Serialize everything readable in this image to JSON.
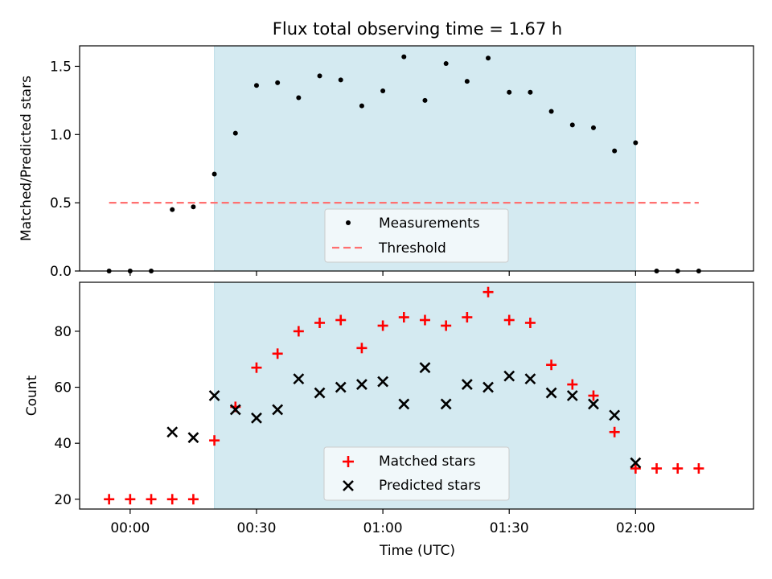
{
  "figure": {
    "title": "Flux total observing time = 1.67 h",
    "xlabel": "Time (UTC)"
  },
  "chart_data": [
    {
      "type": "scatter",
      "title": "Flux total observing time = 1.67 h",
      "xlabel": "",
      "ylabel": "Matched/Predicted stars",
      "xlim": [
        "23:48",
        "02:28"
      ],
      "ylim": [
        0,
        1.65
      ],
      "yticks": [
        0.0,
        0.5,
        1.0,
        1.5
      ],
      "ytick_labels": [
        "0.0",
        "0.5",
        "1.0",
        "1.5"
      ],
      "shaded_span": [
        "00:20",
        "02:00"
      ],
      "shade_color": "#d4eaf1",
      "legend_position": "lower center",
      "series": [
        {
          "name": "Measurements",
          "marker": "dot",
          "color": "#000000",
          "x": [
            "23:55",
            "00:00",
            "00:05",
            "00:10",
            "00:15",
            "00:20",
            "00:25",
            "00:30",
            "00:35",
            "00:40",
            "00:45",
            "00:50",
            "00:55",
            "01:00",
            "01:05",
            "01:10",
            "01:15",
            "01:20",
            "01:25",
            "01:30",
            "01:35",
            "01:40",
            "01:45",
            "01:50",
            "01:55",
            "02:00",
            "02:05",
            "02:10",
            "02:15"
          ],
          "y": [
            0.0,
            0.0,
            0.0,
            0.45,
            0.47,
            0.71,
            1.01,
            1.36,
            1.38,
            1.27,
            1.43,
            1.4,
            1.21,
            1.32,
            1.57,
            1.25,
            1.52,
            1.39,
            1.56,
            1.31,
            1.31,
            1.17,
            1.07,
            1.05,
            0.88,
            0.94,
            0.0,
            0.0,
            0.0
          ]
        },
        {
          "name": "Threshold",
          "marker": "dashed-line",
          "color": "#ff7070",
          "x": [
            "23:55",
            "02:15"
          ],
          "y": [
            0.5,
            0.5
          ]
        }
      ]
    },
    {
      "type": "scatter",
      "xlabel": "Time (UTC)",
      "ylabel": "Count",
      "xlim": [
        "23:48",
        "02:28"
      ],
      "ylim": [
        16.5,
        97.5
      ],
      "xticks": [
        "00:00",
        "00:30",
        "01:00",
        "01:30",
        "02:00"
      ],
      "yticks": [
        20,
        40,
        60,
        80
      ],
      "ytick_labels": [
        "20",
        "40",
        "60",
        "80"
      ],
      "shaded_span": [
        "00:20",
        "02:00"
      ],
      "shade_color": "#d4eaf1",
      "legend_position": "lower center",
      "series": [
        {
          "name": "Matched stars",
          "marker": "plus",
          "color": "#ff0000",
          "x": [
            "23:55",
            "00:00",
            "00:05",
            "00:10",
            "00:15",
            "00:20",
            "00:25",
            "00:30",
            "00:35",
            "00:40",
            "00:45",
            "00:50",
            "00:55",
            "01:00",
            "01:05",
            "01:10",
            "01:15",
            "01:20",
            "01:25",
            "01:30",
            "01:35",
            "01:40",
            "01:45",
            "01:50",
            "01:55",
            "02:00",
            "02:05",
            "02:10",
            "02:15"
          ],
          "y": [
            20,
            20,
            20,
            20,
            20,
            41,
            53,
            67,
            72,
            80,
            83,
            84,
            74,
            82,
            85,
            84,
            82,
            85,
            94,
            84,
            83,
            68,
            61,
            57,
            44,
            31,
            31,
            31,
            31
          ]
        },
        {
          "name": "Predicted stars",
          "marker": "x",
          "color": "#000000",
          "x": [
            "00:10",
            "00:15",
            "00:20",
            "00:25",
            "00:30",
            "00:35",
            "00:40",
            "00:45",
            "00:50",
            "00:55",
            "01:00",
            "01:05",
            "01:10",
            "01:15",
            "01:20",
            "01:25",
            "01:30",
            "01:35",
            "01:40",
            "01:45",
            "01:50",
            "01:55",
            "02:00"
          ],
          "y": [
            44,
            42,
            57,
            52,
            49,
            52,
            63,
            58,
            60,
            61,
            62,
            54,
            67,
            54,
            61,
            60,
            64,
            63,
            58,
            57,
            54,
            50,
            33
          ]
        }
      ]
    }
  ]
}
